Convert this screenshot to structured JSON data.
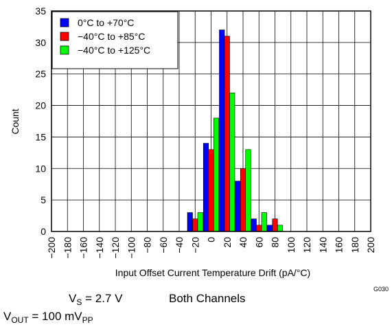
{
  "chart_data": {
    "type": "bar",
    "xlabel": "Input Offset Current Temperature Drift (pA/°C)",
    "ylabel": "Count",
    "ylim": [
      0,
      35
    ],
    "yticks": [
      0,
      5,
      10,
      15,
      20,
      25,
      30,
      35
    ],
    "xlim": [
      -200,
      200
    ],
    "xtick_step": 20,
    "xticks": [
      "−200",
      "−180",
      "−160",
      "−140",
      "−120",
      "−100",
      "−80",
      "−60",
      "−40",
      "−20",
      "0",
      "20",
      "40",
      "60",
      "80",
      "100",
      "120",
      "140",
      "160",
      "180",
      "200"
    ],
    "grid": true,
    "legend_position": "top-left",
    "categories": [
      -20,
      0,
      20,
      40,
      60,
      80
    ],
    "series": [
      {
        "name": "0°C to +70°C",
        "color": "#0000ff",
        "values": [
          3,
          14,
          32,
          8,
          2,
          1
        ]
      },
      {
        "name": "−40°C to +85°C",
        "color": "#ff0000",
        "values": [
          2,
          13,
          31,
          10,
          1,
          2
        ]
      },
      {
        "name": "−40°C to +125°C",
        "color": "#00ff00",
        "values": [
          3,
          18,
          22,
          13,
          3,
          1
        ]
      }
    ],
    "code": "G030"
  },
  "conditions": {
    "vs_label": "V",
    "vs_sub": "S",
    "vs_value": " = 2.7 V",
    "channels": "Both Channels",
    "vout_label": "V",
    "vout_sub": "OUT",
    "vout_value": " = 100 mV",
    "vout_unit_sub": "PP"
  }
}
